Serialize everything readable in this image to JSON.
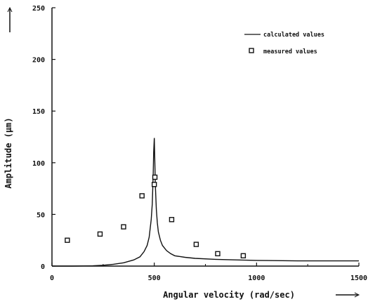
{
  "chart_data": {
    "type": "line",
    "title": "",
    "xlabel": "Angular velocity (rad/sec)",
    "ylabel": "Amplitude (µm)",
    "xlim": [
      0,
      1500
    ],
    "ylim": [
      0,
      250
    ],
    "x_ticks": [
      "0",
      "500",
      "1000",
      "1500"
    ],
    "y_ticks": [
      "0",
      "50",
      "100",
      "150",
      "200",
      "250"
    ],
    "grid": false,
    "legend_position": "top-right",
    "series": [
      {
        "name": "calculated values",
        "style": "line",
        "x": [
          0,
          100,
          200,
          250,
          300,
          350,
          400,
          430,
          450,
          465,
          475,
          485,
          490,
          495,
          497,
          500,
          503,
          505,
          510,
          515,
          520,
          530,
          540,
          560,
          580,
          600,
          650,
          700,
          800,
          900,
          1000,
          1200,
          1500
        ],
        "y": [
          0,
          0,
          0.3,
          0.8,
          1.8,
          3.2,
          6,
          9,
          14,
          20,
          28,
          45,
          60,
          90,
          110,
          124,
          100,
          80,
          55,
          42,
          33,
          25,
          20,
          15,
          12,
          10,
          8.5,
          7.5,
          6.5,
          6,
          5.5,
          5,
          5
        ]
      },
      {
        "name": "measured values",
        "style": "square-marker",
        "x": [
          75,
          235,
          350,
          440,
          500,
          503,
          585,
          705,
          810,
          935
        ],
        "y": [
          25,
          31,
          38,
          68,
          79,
          86,
          45,
          21,
          12,
          10
        ]
      }
    ]
  }
}
